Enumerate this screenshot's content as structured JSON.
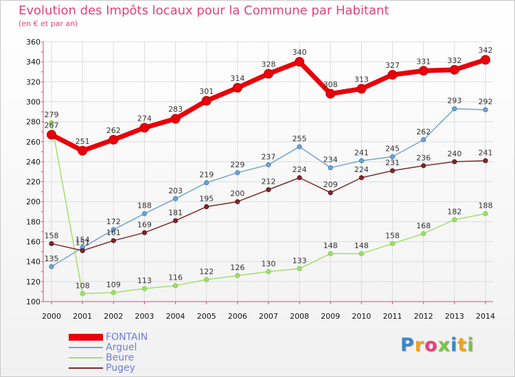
{
  "header": {
    "title": "Evolution des Impôts locaux pour la Commune par Habitant",
    "subtitle": "(en € et par an)"
  },
  "logo": {
    "text": "Proxiti",
    "letter_colors": [
      "#3a86c8",
      "#f0a11c",
      "#e8407a",
      "#7cc243",
      "#3a86c8",
      "#f0a11c",
      "#7cc243"
    ]
  },
  "chart_data": {
    "type": "line",
    "title": "Evolution des Impôts locaux pour la Commune par Habitant",
    "subtitle": "(en € et par an)",
    "xlabel": "",
    "ylabel": "",
    "ylim": [
      100,
      360
    ],
    "yticks": [
      100,
      120,
      140,
      160,
      180,
      200,
      220,
      240,
      260,
      280,
      300,
      320,
      340,
      360
    ],
    "grid": true,
    "legend_position": "bottom-left",
    "categories": [
      "2000",
      "2001",
      "2002",
      "2003",
      "2004",
      "2005",
      "2006",
      "2007",
      "2008",
      "2009",
      "2010",
      "2011",
      "2012",
      "2013",
      "2014"
    ],
    "series": [
      {
        "name": "FONTAIN",
        "color": "#e8000b",
        "values": [
          267,
          251,
          262,
          274,
          283,
          301,
          314,
          328,
          340,
          308,
          313,
          327,
          331,
          332,
          342
        ]
      },
      {
        "name": "Arguel",
        "color": "#6fa4d2",
        "values": [
          135,
          154,
          172,
          188,
          203,
          219,
          229,
          237,
          255,
          234,
          241,
          245,
          262,
          293,
          292
        ]
      },
      {
        "name": "Beure",
        "color": "#9fe06a",
        "values": [
          279,
          108,
          109,
          113,
          116,
          122,
          126,
          130,
          133,
          148,
          148,
          158,
          168,
          182,
          188
        ]
      },
      {
        "name": "Pugey",
        "color": "#7a2a2a",
        "values": [
          158,
          151,
          161,
          169,
          181,
          195,
          200,
          212,
          224,
          209,
          224,
          231,
          236,
          240,
          241
        ]
      }
    ]
  }
}
